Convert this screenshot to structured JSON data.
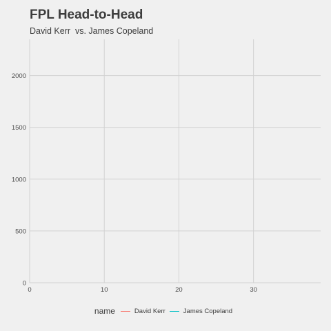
{
  "chart_data": {
    "type": "line",
    "title": "FPL Head-to-Head",
    "subtitle": "David Kerr  vs. James Copeland",
    "xlabel": "",
    "ylabel": "",
    "xlim": [
      0,
      39
    ],
    "ylim": [
      0,
      2350
    ],
    "x_ticks": [
      0,
      10,
      20,
      30
    ],
    "y_ticks": [
      0,
      500,
      1000,
      1500,
      2000
    ],
    "grid": true,
    "legend_position": "bottom",
    "legend_title": "name",
    "series": [
      {
        "name": "David Kerr",
        "color": "#f8766d",
        "x": [],
        "y": []
      },
      {
        "name": "James Copeland",
        "color": "#00bfc4",
        "x": [],
        "y": []
      }
    ]
  }
}
